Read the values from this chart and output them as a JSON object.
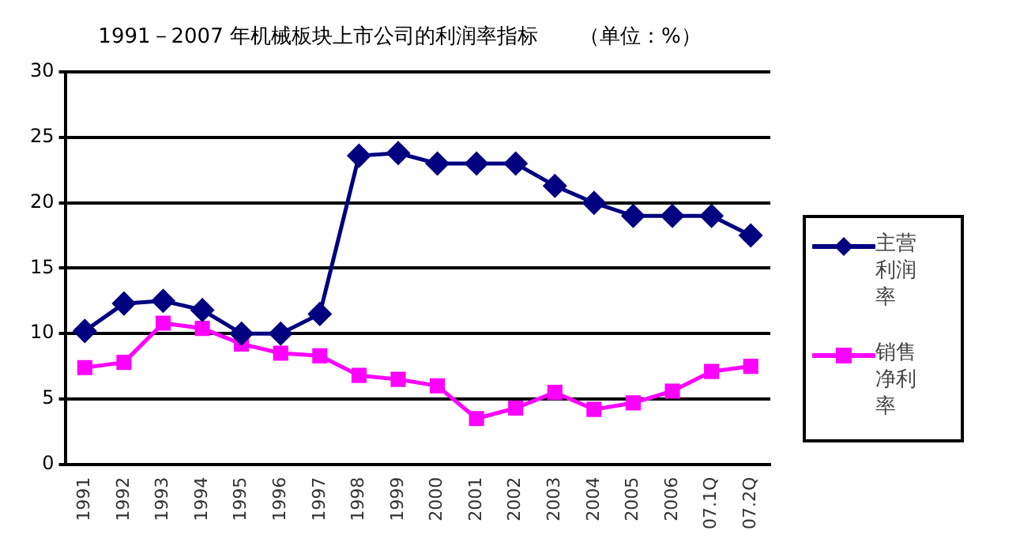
{
  "chart_data": {
    "type": "line",
    "title": "1991－2007 年机械板块上市公司的利润率指标　　（单位：%）",
    "categories": [
      "1991",
      "1992",
      "1993",
      "1994",
      "1995",
      "1996",
      "1997",
      "1998",
      "1999",
      "2000",
      "2001",
      "2002",
      "2003",
      "2004",
      "2005",
      "2006",
      "07.1Q",
      "07.2Q"
    ],
    "series": [
      {
        "name": "主营利润率",
        "color": "#000080",
        "marker": "diamond",
        "values": [
          10.2,
          12.3,
          12.5,
          11.8,
          10.0,
          10.0,
          11.5,
          23.6,
          23.8,
          23.0,
          23.0,
          23.0,
          21.3,
          20.0,
          19.0,
          19.0,
          19.0,
          17.5
        ]
      },
      {
        "name": "销售净利率",
        "color": "#ff00ff",
        "marker": "square",
        "values": [
          7.4,
          7.8,
          10.8,
          10.4,
          9.2,
          8.5,
          8.3,
          6.8,
          6.5,
          6.0,
          3.5,
          4.3,
          5.5,
          4.2,
          4.7,
          5.6,
          7.1,
          7.5
        ]
      }
    ],
    "ylim": [
      0,
      30
    ],
    "yticks": [
      0,
      5,
      10,
      15,
      20,
      25,
      30
    ],
    "grid": "y",
    "legend": "right",
    "line_style": "solid"
  }
}
